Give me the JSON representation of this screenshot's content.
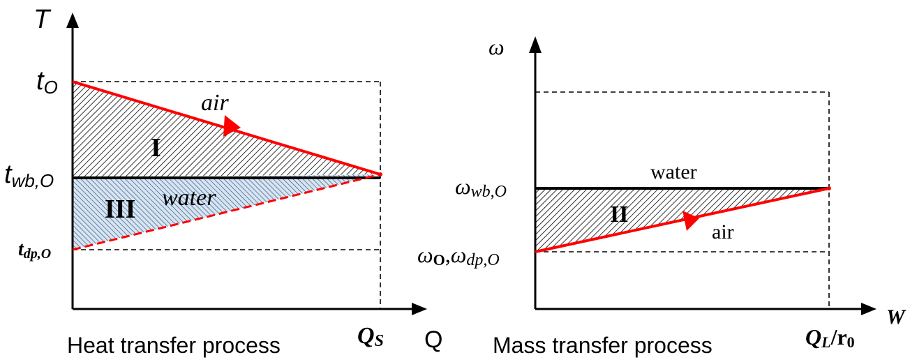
{
  "heat": {
    "y_axis": "T",
    "x_axis": "Q",
    "t_o": {
      "main": "t",
      "sub": "O"
    },
    "t_wb": {
      "main": "t",
      "sub": "wb,O"
    },
    "t_dp": "t",
    "t_dp_sub": "dp,O",
    "q_s": "Q",
    "q_s_sub": "S",
    "label_air": "air",
    "label_water": "water",
    "region_I": "I",
    "region_III": "III",
    "caption": "Heat transfer process"
  },
  "mass": {
    "y_axis": "ω",
    "x_axis": "W",
    "omega_wb": "ω",
    "omega_wb_sub": "wb,O",
    "omega_o": "ω",
    "omega_o_sub": "O",
    "omega_dp": "ω",
    "omega_dp_sub": "dp,O",
    "q_l": "Q",
    "q_l_sub": "L",
    "q_l_div": "/r",
    "q_l_div_sub": "0",
    "label_water": "water",
    "label_air": "air",
    "region_II": "II",
    "caption": "Mass transfer process"
  },
  "colors": {
    "air_line": "#ff0000",
    "water_line": "#000000",
    "hatch_I": "#000000",
    "hatch_III": "#2e5a8c",
    "fill_III": "#d8e4f0"
  }
}
